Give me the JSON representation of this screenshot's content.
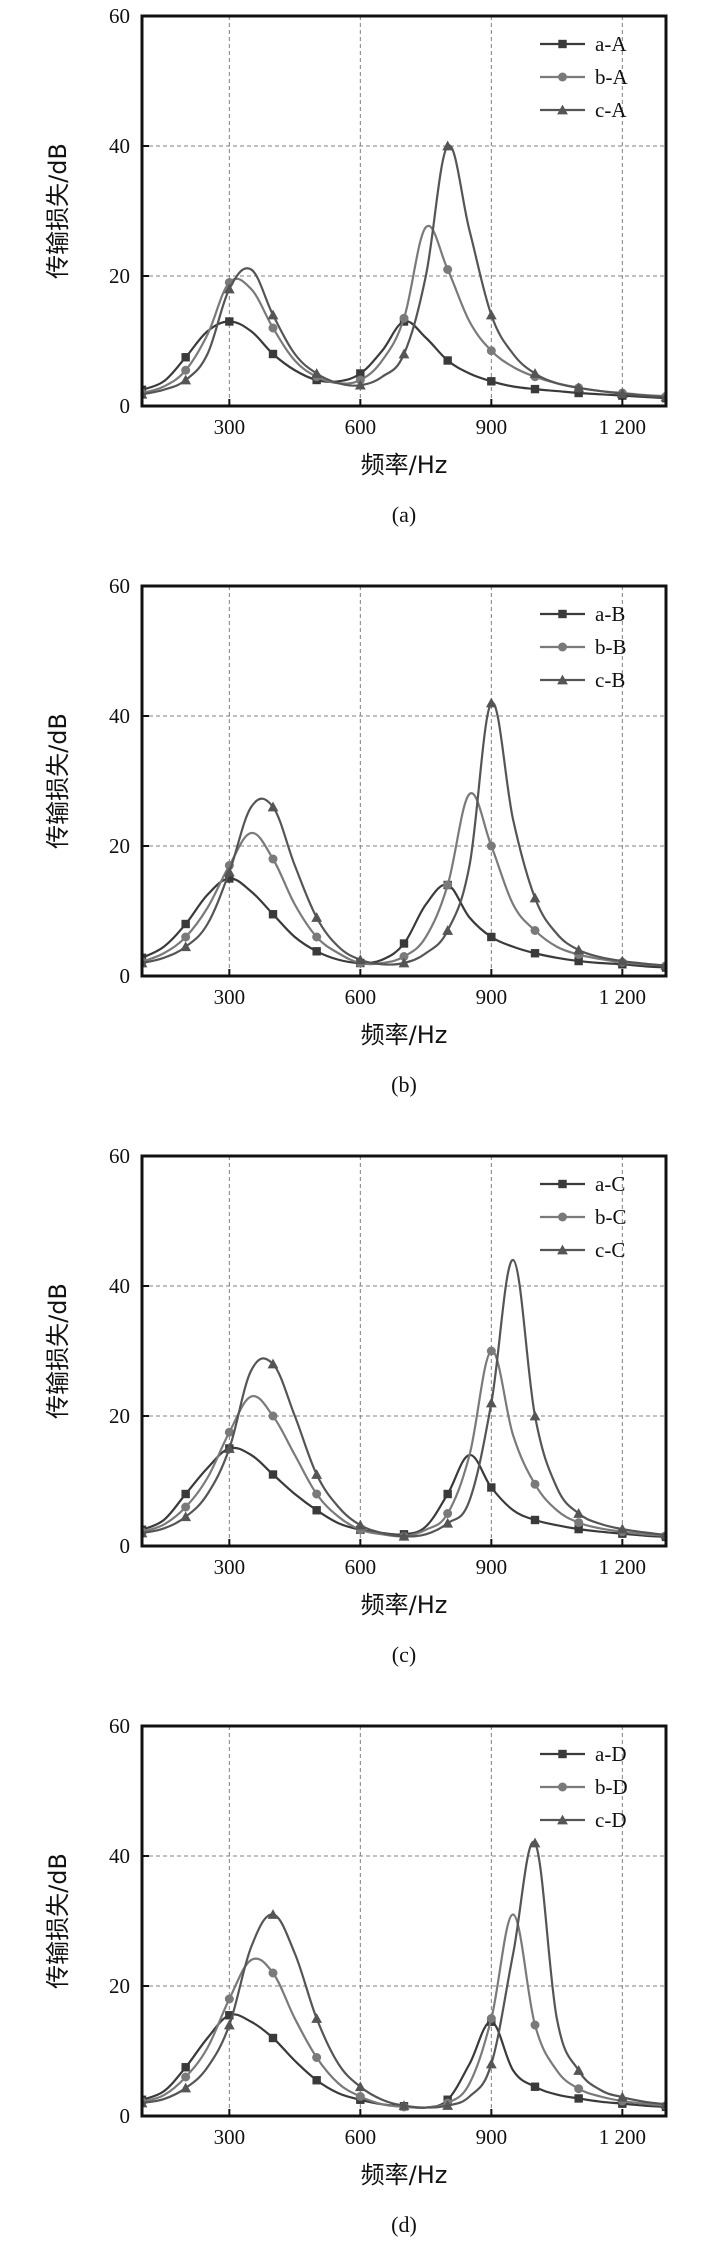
{
  "chart_data": [
    {
      "type": "line",
      "panel_label": "(a)",
      "xlabel": "频率/Hz",
      "ylabel": "传输损失/dB",
      "xlim": [
        100,
        1300
      ],
      "ylim": [
        0,
        60
      ],
      "xticks": [
        300,
        600,
        900,
        1200
      ],
      "xtick_labels": [
        "300",
        "600",
        "900",
        "1 200"
      ],
      "yticks": [
        0,
        20,
        40,
        60
      ],
      "ytick_labels": [
        "0",
        "20",
        "40",
        "60"
      ],
      "grid": true,
      "legend_position": "top-right",
      "series": [
        {
          "name": "a-A",
          "marker": "square",
          "color": "#3a3a3a",
          "x": [
            100,
            150,
            200,
            250,
            300,
            350,
            400,
            450,
            500,
            550,
            600,
            650,
            700,
            750,
            800,
            850,
            900,
            950,
            1000,
            1050,
            1100,
            1150,
            1200,
            1250,
            1300
          ],
          "y": [
            2.5,
            3.8,
            7.5,
            11.5,
            13,
            11.5,
            8,
            5.5,
            4,
            3.8,
            5,
            8.5,
            13,
            10.5,
            7,
            5,
            3.8,
            3,
            2.6,
            2.3,
            2,
            1.8,
            1.6,
            1.4,
            1.2
          ]
        },
        {
          "name": "b-A",
          "marker": "circle",
          "color": "#7a7a7a",
          "x": [
            100,
            150,
            200,
            250,
            300,
            350,
            400,
            450,
            500,
            550,
            600,
            650,
            700,
            750,
            800,
            850,
            900,
            950,
            1000,
            1050,
            1100,
            1150,
            1200,
            1250,
            1300
          ],
          "y": [
            2,
            3,
            5.5,
            11,
            19,
            18,
            12,
            7,
            4.5,
            3.5,
            4,
            7,
            13.5,
            27.5,
            21,
            13,
            8.5,
            6,
            4.5,
            3.5,
            2.8,
            2.3,
            2,
            1.7,
            1.5
          ]
        },
        {
          "name": "c-A",
          "marker": "triangle",
          "color": "#555555",
          "x": [
            100,
            150,
            200,
            250,
            300,
            350,
            400,
            450,
            500,
            550,
            600,
            650,
            700,
            750,
            800,
            850,
            900,
            950,
            1000,
            1050,
            1100,
            1150,
            1200,
            1250,
            1300
          ],
          "y": [
            1.8,
            2.5,
            4,
            8,
            18,
            21,
            14,
            8,
            5,
            3.5,
            3.2,
            4.5,
            8,
            20,
            40,
            27,
            14,
            8,
            5,
            3.5,
            2.8,
            2.3,
            1.9,
            1.6,
            1.4
          ]
        }
      ]
    },
    {
      "type": "line",
      "panel_label": "(b)",
      "xlabel": "频率/Hz",
      "ylabel": "传输损失/dB",
      "xlim": [
        100,
        1300
      ],
      "ylim": [
        0,
        60
      ],
      "xticks": [
        300,
        600,
        900,
        1200
      ],
      "xtick_labels": [
        "300",
        "600",
        "900",
        "1 200"
      ],
      "yticks": [
        0,
        20,
        40,
        60
      ],
      "ytick_labels": [
        "0",
        "20",
        "40",
        "60"
      ],
      "grid": true,
      "legend_position": "top-right",
      "series": [
        {
          "name": "a-B",
          "marker": "square",
          "color": "#3a3a3a",
          "x": [
            100,
            150,
            200,
            250,
            300,
            350,
            400,
            450,
            500,
            550,
            600,
            650,
            700,
            750,
            800,
            850,
            900,
            950,
            1000,
            1050,
            1100,
            1150,
            1200,
            1250,
            1300
          ],
          "y": [
            2.8,
            4.5,
            8,
            12.5,
            15,
            13,
            9.5,
            6,
            3.8,
            2.5,
            2,
            2.5,
            5,
            11,
            14,
            9,
            6,
            4.5,
            3.5,
            2.8,
            2.3,
            2,
            1.8,
            1.5,
            1.3
          ]
        },
        {
          "name": "b-B",
          "marker": "circle",
          "color": "#7a7a7a",
          "x": [
            100,
            150,
            200,
            250,
            300,
            350,
            400,
            450,
            500,
            550,
            600,
            650,
            700,
            750,
            800,
            850,
            900,
            950,
            1000,
            1050,
            1100,
            1150,
            1200,
            1250,
            1300
          ],
          "y": [
            2.2,
            3.5,
            6,
            10.5,
            17,
            22,
            18,
            11,
            6,
            3.5,
            2,
            2,
            3,
            6,
            14,
            28,
            20,
            11,
            7,
            4.5,
            3.3,
            2.6,
            2.1,
            1.8,
            1.6
          ]
        },
        {
          "name": "c-B",
          "marker": "triangle",
          "color": "#555555",
          "x": [
            100,
            150,
            200,
            250,
            300,
            350,
            400,
            450,
            500,
            550,
            600,
            650,
            700,
            750,
            800,
            850,
            900,
            950,
            1000,
            1050,
            1100,
            1150,
            1200,
            1250,
            1300
          ],
          "y": [
            2,
            2.8,
            4.5,
            8,
            16,
            26,
            26,
            17,
            9,
            4.5,
            2.5,
            1.8,
            2,
            3.5,
            7,
            17,
            42,
            24,
            12,
            6.5,
            4,
            2.9,
            2.3,
            1.9,
            1.6
          ]
        }
      ]
    },
    {
      "type": "line",
      "panel_label": "(c)",
      "xlabel": "频率/Hz",
      "ylabel": "传输损失/dB",
      "xlim": [
        100,
        1300
      ],
      "ylim": [
        0,
        60
      ],
      "xticks": [
        300,
        600,
        900,
        1200
      ],
      "xtick_labels": [
        "300",
        "600",
        "900",
        "1 200"
      ],
      "yticks": [
        0,
        20,
        40,
        60
      ],
      "ytick_labels": [
        "0",
        "20",
        "40",
        "60"
      ],
      "grid": true,
      "legend_position": "top-right",
      "series": [
        {
          "name": "a-C",
          "marker": "square",
          "color": "#3a3a3a",
          "x": [
            100,
            150,
            200,
            250,
            300,
            350,
            400,
            450,
            500,
            550,
            600,
            650,
            700,
            750,
            800,
            850,
            900,
            950,
            1000,
            1050,
            1100,
            1150,
            1200,
            1250,
            1300
          ],
          "y": [
            2.5,
            4,
            8,
            12,
            15,
            14,
            11,
            8,
            5.5,
            3.5,
            2.5,
            2,
            1.8,
            3,
            8,
            14,
            9,
            5.5,
            4,
            3.2,
            2.6,
            2.2,
            1.9,
            1.6,
            1.4
          ]
        },
        {
          "name": "b-C",
          "marker": "circle",
          "color": "#7a7a7a",
          "x": [
            100,
            150,
            200,
            250,
            300,
            350,
            400,
            450,
            500,
            550,
            600,
            650,
            700,
            750,
            800,
            850,
            900,
            950,
            1000,
            1050,
            1100,
            1150,
            1200,
            1250,
            1300
          ],
          "y": [
            2.2,
            3.3,
            6,
            10.5,
            17.5,
            23,
            20,
            14,
            8,
            4.5,
            2.5,
            1.8,
            1.5,
            2.5,
            5,
            14,
            30,
            17,
            9.5,
            5.5,
            3.6,
            2.7,
            2.2,
            1.8,
            1.6
          ]
        },
        {
          "name": "c-C",
          "marker": "triangle",
          "color": "#555555",
          "x": [
            100,
            150,
            200,
            250,
            300,
            350,
            400,
            450,
            500,
            550,
            600,
            650,
            700,
            750,
            800,
            850,
            900,
            950,
            1000,
            1050,
            1100,
            1150,
            1200,
            1250,
            1300
          ],
          "y": [
            2,
            2.7,
            4.5,
            8,
            15,
            27,
            28,
            20,
            11,
            6,
            3.2,
            2,
            1.5,
            1.8,
            3.5,
            7,
            22,
            44,
            20,
            9,
            5,
            3.4,
            2.6,
            2.1,
            1.7
          ]
        }
      ]
    },
    {
      "type": "line",
      "panel_label": "(d)",
      "xlabel": "频率/Hz",
      "ylabel": "传输损失/dB",
      "xlim": [
        100,
        1300
      ],
      "ylim": [
        0,
        60
      ],
      "xticks": [
        300,
        600,
        900,
        1200
      ],
      "xtick_labels": [
        "300",
        "600",
        "900",
        "1 200"
      ],
      "yticks": [
        0,
        20,
        40,
        60
      ],
      "ytick_labels": [
        "0",
        "20",
        "40",
        "60"
      ],
      "grid": true,
      "legend_position": "top-right",
      "series": [
        {
          "name": "a-D",
          "marker": "square",
          "color": "#3a3a3a",
          "x": [
            100,
            150,
            200,
            250,
            300,
            350,
            400,
            450,
            500,
            550,
            600,
            650,
            700,
            750,
            800,
            850,
            900,
            950,
            1000,
            1050,
            1100,
            1150,
            1200,
            1250,
            1300
          ],
          "y": [
            2.5,
            3.8,
            7.5,
            12,
            15.5,
            14.5,
            12,
            8.5,
            5.5,
            3.5,
            2.5,
            1.8,
            1.5,
            1.3,
            2.5,
            8,
            14.5,
            7,
            4.5,
            3.3,
            2.7,
            2.2,
            1.9,
            1.6,
            1.4
          ]
        },
        {
          "name": "b-D",
          "marker": "circle",
          "color": "#7a7a7a",
          "x": [
            100,
            150,
            200,
            250,
            300,
            350,
            400,
            450,
            500,
            550,
            600,
            650,
            700,
            750,
            800,
            850,
            900,
            950,
            1000,
            1050,
            1100,
            1150,
            1200,
            1250,
            1300
          ],
          "y": [
            2.2,
            3.2,
            6,
            10.5,
            18,
            24,
            22,
            15,
            9,
            5,
            3,
            1.8,
            1.4,
            1.3,
            2,
            5,
            15,
            31,
            14,
            7,
            4.2,
            3,
            2.3,
            1.9,
            1.6
          ]
        },
        {
          "name": "c-D",
          "marker": "triangle",
          "color": "#555555",
          "x": [
            100,
            150,
            200,
            250,
            300,
            350,
            400,
            450,
            500,
            550,
            600,
            650,
            700,
            750,
            800,
            850,
            900,
            950,
            1000,
            1050,
            1100,
            1150,
            1200,
            1250,
            1300
          ],
          "y": [
            2,
            2.6,
            4.3,
            7.5,
            14,
            26,
            31,
            25,
            15,
            8,
            4.5,
            2.5,
            1.6,
            1.3,
            1.6,
            3,
            8,
            25,
            42,
            15,
            7,
            4,
            2.9,
            2.2,
            1.8
          ]
        }
      ]
    }
  ]
}
